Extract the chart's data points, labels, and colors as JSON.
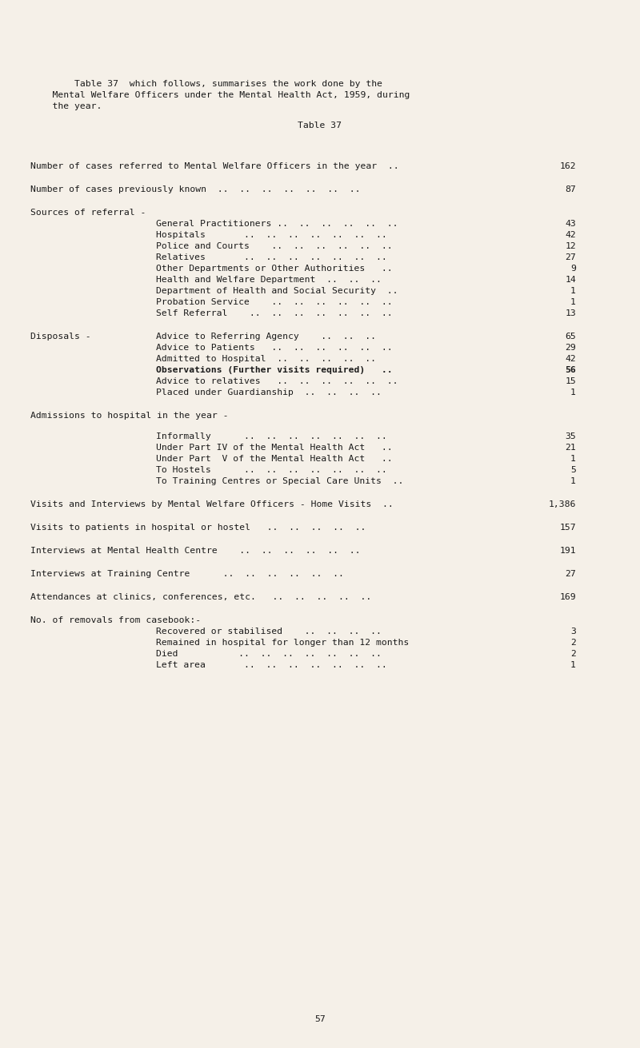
{
  "bg_color": "#f5f0e8",
  "text_color": "#1a1a1a",
  "font_family": "monospace",
  "font_size": 8.2,
  "page_number": "57",
  "intro_text": [
    "        Table 37  which follows, summarises the work done by the",
    "    Mental Welfare Officers under the Mental Health Act, 1959, during",
    "    the year."
  ],
  "table_title": "Table 37",
  "rows": [
    {
      "indent": 0,
      "label": "Number of cases referred to Mental Welfare Officers in the year  ..",
      "value": "162",
      "bold": false,
      "spacer_before": 2.0
    },
    {
      "indent": 0,
      "label": "Number of cases previously known  ..  ..  ..  ..  ..  ..  ..",
      "value": "87",
      "bold": false,
      "spacer_before": 1.5
    },
    {
      "indent": 0,
      "label": "Sources of referral -",
      "value": "",
      "bold": false,
      "spacer_before": 1.5
    },
    {
      "indent": 1,
      "label": "General Practitioners ..  ..  ..  ..  ..  ..",
      "value": "43",
      "bold": false,
      "spacer_before": 0
    },
    {
      "indent": 1,
      "label": "Hospitals       ..  ..  ..  ..  ..  ..  ..",
      "value": "42",
      "bold": false,
      "spacer_before": 0
    },
    {
      "indent": 1,
      "label": "Police and Courts    ..  ..  ..  ..  ..  ..",
      "value": "12",
      "bold": false,
      "spacer_before": 0
    },
    {
      "indent": 1,
      "label": "Relatives       ..  ..  ..  ..  ..  ..  ..",
      "value": "27",
      "bold": false,
      "spacer_before": 0
    },
    {
      "indent": 1,
      "label": "Other Departments or Other Authorities   ..",
      "value": "9",
      "bold": false,
      "spacer_before": 0
    },
    {
      "indent": 1,
      "label": "Health and Welfare Department  ..  ..  ..",
      "value": "14",
      "bold": false,
      "spacer_before": 0
    },
    {
      "indent": 1,
      "label": "Department of Health and Social Security  ..",
      "value": "1",
      "bold": false,
      "spacer_before": 0
    },
    {
      "indent": 1,
      "label": "Probation Service    ..  ..  ..  ..  ..  ..",
      "value": "1",
      "bold": false,
      "spacer_before": 0
    },
    {
      "indent": 1,
      "label": "Self Referral    ..  ..  ..  ..  ..  ..  ..",
      "value": "13",
      "bold": false,
      "spacer_before": 0
    },
    {
      "indent": 2,
      "left": "Disposals -",
      "label": "Advice to Referring Agency    ..  ..  ..",
      "value": "65",
      "bold": false,
      "spacer_before": 1.5
    },
    {
      "indent": 1,
      "label": "Advice to Patients   ..  ..  ..  ..  ..  ..",
      "value": "29",
      "bold": false,
      "spacer_before": 0
    },
    {
      "indent": 1,
      "label": "Admitted to Hospital  ..  ..  ..  ..  ..",
      "value": "42",
      "bold": false,
      "spacer_before": 0
    },
    {
      "indent": 1,
      "label": "Observations (Further visits required)   ..",
      "value": "56",
      "bold": true,
      "spacer_before": 0
    },
    {
      "indent": 1,
      "label": "Advice to relatives   ..  ..  ..  ..  ..  ..",
      "value": "15",
      "bold": false,
      "spacer_before": 0
    },
    {
      "indent": 1,
      "label": "Placed under Guardianship  ..  ..  ..  ..",
      "value": "1",
      "bold": false,
      "spacer_before": 0
    },
    {
      "indent": 0,
      "label": "Admissions to hospital in the year -",
      "value": "",
      "bold": false,
      "spacer_before": 1.5
    },
    {
      "indent": 1,
      "label": "Informally      ..  ..  ..  ..  ..  ..  ..",
      "value": "35",
      "bold": false,
      "spacer_before": 1.2
    },
    {
      "indent": 1,
      "label": "Under Part IV of the Mental Health Act   ..",
      "value": "21",
      "bold": false,
      "spacer_before": 0
    },
    {
      "indent": 1,
      "label": "Under Part  V of the Mental Health Act   ..",
      "value": "1",
      "bold": false,
      "spacer_before": 0
    },
    {
      "indent": 1,
      "label": "To Hostels      ..  ..  ..  ..  ..  ..  ..",
      "value": "5",
      "bold": false,
      "spacer_before": 0
    },
    {
      "indent": 1,
      "label": "To Training Centres or Special Care Units  ..",
      "value": "1",
      "bold": false,
      "spacer_before": 0
    },
    {
      "indent": 3,
      "label": "Visits and Interviews by Mental Welfare Officers - Home Visits",
      "value": "1,386",
      "bold": false,
      "spacer_before": 1.5
    },
    {
      "indent": 0,
      "label": "Visits to patients in hospital or hostel   ..  ..  ..  ..  ..",
      "value": "157",
      "bold": false,
      "spacer_before": 1.5
    },
    {
      "indent": 0,
      "label": "Interviews at Mental Health Centre    ..  ..  ..  ..  ..  ..",
      "value": "191",
      "bold": false,
      "spacer_before": 1.5
    },
    {
      "indent": 0,
      "label": "Interviews at Training Centre      ..  ..  ..  ..  ..  ..",
      "value": "27",
      "bold": false,
      "spacer_before": 1.5
    },
    {
      "indent": 0,
      "label": "Attendances at clinics, conferences, etc.   ..  ..  ..  ..  ..",
      "value": "169",
      "bold": false,
      "spacer_before": 1.5
    },
    {
      "indent": 0,
      "label": "No. of removals from casebook:-",
      "value": "",
      "bold": false,
      "spacer_before": 1.5
    },
    {
      "indent": 1,
      "label": "Recovered or stabilised    ..  ..  ..  ..",
      "value": "3",
      "bold": false,
      "spacer_before": 0
    },
    {
      "indent": 1,
      "label": "Remained in hospital for longer than 12 months",
      "value": "2",
      "bold": false,
      "spacer_before": 0
    },
    {
      "indent": 1,
      "label": "Died           ..  ..  ..  ..  ..  ..  ..",
      "value": "2",
      "bold": false,
      "spacer_before": 0
    },
    {
      "indent": 1,
      "label": "Left area       ..  ..  ..  ..  ..  ..  ..",
      "value": "1",
      "bold": false,
      "spacer_before": 0
    }
  ]
}
